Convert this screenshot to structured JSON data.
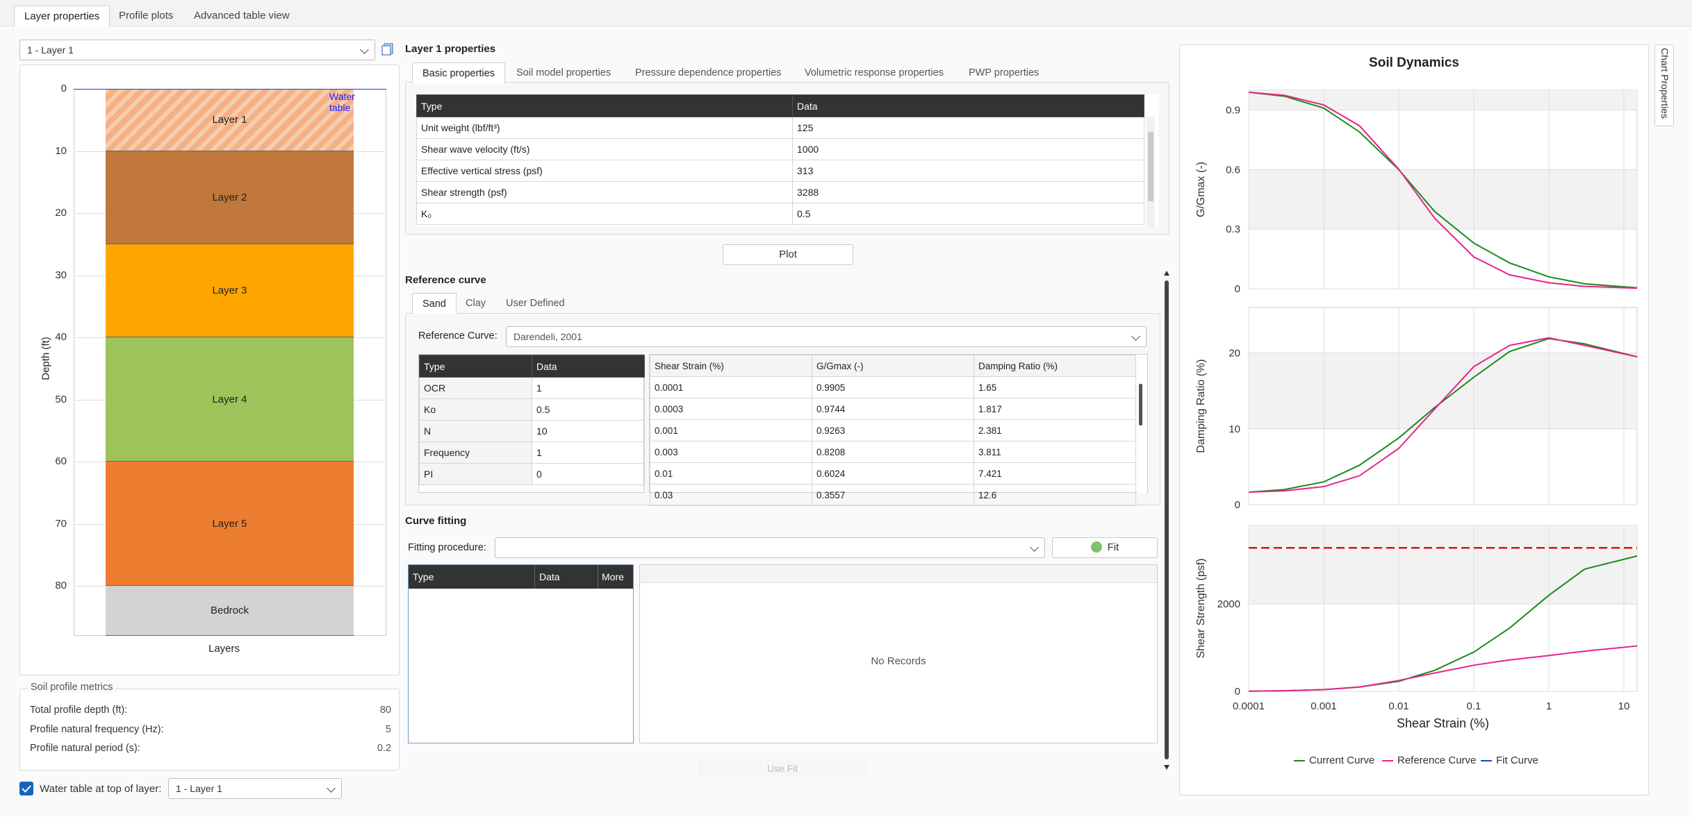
{
  "tabs": [
    "Layer properties",
    "Profile plots",
    "Advanced table view"
  ],
  "layer_select": "1 - Layer 1",
  "profile": {
    "ylabel": "Depth (ft)",
    "xlabel": "Layers",
    "water_table_label": "Water table",
    "yticks": [
      "0",
      "10",
      "20",
      "30",
      "40",
      "50",
      "60",
      "70",
      "80"
    ],
    "layers": [
      {
        "name": "Layer 1",
        "top": 0,
        "bottom": 10,
        "color": "#f4b183"
      },
      {
        "name": "Layer 2",
        "top": 10,
        "bottom": 25,
        "color": "#c0773a"
      },
      {
        "name": "Layer 3",
        "top": 25,
        "bottom": 40,
        "color": "#ffa500"
      },
      {
        "name": "Layer 4",
        "top": 40,
        "bottom": 60,
        "color": "#9dc35a"
      },
      {
        "name": "Layer 5",
        "top": 60,
        "bottom": 80,
        "color": "#ed7d31"
      },
      {
        "name": "Bedrock",
        "top": 80,
        "bottom": 88,
        "color": "#d3d3d3"
      }
    ]
  },
  "metrics": {
    "title": "Soil profile metrics",
    "rows": [
      {
        "label": "Total profile depth (ft):",
        "value": "80"
      },
      {
        "label": "Profile natural frequency (Hz):",
        "value": "5"
      },
      {
        "label": "Profile natural period (s):",
        "value": "0.2"
      }
    ]
  },
  "water_table": {
    "label": "Water table at top of layer:",
    "value": "1 - Layer 1",
    "checked": true
  },
  "layer_props": {
    "title": "Layer 1 properties",
    "tabs": [
      "Basic properties",
      "Soil model properties",
      "Pressure dependence properties",
      "Volumetric response properties",
      "PWP properties"
    ],
    "headers": [
      "Type",
      "Data"
    ],
    "rows": [
      [
        "Unit weight (lbf/ft³)",
        "125"
      ],
      [
        "Shear wave velocity (ft/s)",
        "1000"
      ],
      [
        "Effective vertical stress (psf)",
        "313"
      ],
      [
        "Shear strength (psf)",
        "3288"
      ],
      [
        "K₀",
        "0.5"
      ]
    ],
    "plot_button": "Plot"
  },
  "reference_curve": {
    "title": "Reference curve",
    "tabs": [
      "Sand",
      "Clay",
      "User Defined"
    ],
    "curve_label": "Reference Curve:",
    "curve_value": "Darendeli, 2001",
    "param_headers": [
      "Type",
      "Data"
    ],
    "params": [
      [
        "OCR",
        "1"
      ],
      [
        "Ko",
        "0.5"
      ],
      [
        "N",
        "10"
      ],
      [
        "Frequency",
        "1"
      ],
      [
        "PI",
        "0"
      ]
    ],
    "curve_headers": [
      "Shear Strain (%)",
      "G/Gmax (-)",
      "Damping Ratio (%)"
    ],
    "curve_rows": [
      [
        "0.0001",
        "0.9905",
        "1.65"
      ],
      [
        "0.0003",
        "0.9744",
        "1.817"
      ],
      [
        "0.001",
        "0.9263",
        "2.381"
      ],
      [
        "0.003",
        "0.8208",
        "3.811"
      ],
      [
        "0.01",
        "0.6024",
        "7.421"
      ],
      [
        "0.03",
        "0.3557",
        "12.6"
      ]
    ]
  },
  "curve_fitting": {
    "title": "Curve fitting",
    "procedure_label": "Fitting procedure:",
    "procedure_value": "",
    "fit_button": "Fit",
    "headers": [
      "Type",
      "Data",
      "More"
    ],
    "no_records": "No Records",
    "use_fit": "Use Fit"
  },
  "chart_properties_label": "Chart Properties",
  "chart_data": {
    "type": "line",
    "title": "Soil Dynamics",
    "xlabel": "Shear Strain (%)",
    "xscale": "log",
    "xlim": [
      0.0001,
      15
    ],
    "xticks": [
      "0.0001",
      "0.001",
      "0.01",
      "0.1",
      "1",
      "10"
    ],
    "legend": [
      "Current Curve",
      "Reference Curve",
      "Fit Curve"
    ],
    "legend_placement": "bottom",
    "colors": {
      "current": "#1a8a1a",
      "reference": "#e8238c",
      "fit": "#1a3fd6",
      "strength": "#e01010"
    },
    "panels": [
      {
        "ylabel": "G/Gmax (-)",
        "ylim": [
          0,
          1.0
        ],
        "yticks": [
          "0",
          "0.3",
          "0.6",
          "0.9"
        ],
        "series": [
          {
            "name": "Current Curve",
            "x": [
              0.0001,
              0.0003,
              0.001,
              0.003,
              0.01,
              0.03,
              0.1,
              0.3,
              1,
              3,
              15
            ],
            "y": [
              0.99,
              0.97,
              0.91,
              0.79,
              0.6,
              0.39,
              0.23,
              0.13,
              0.06,
              0.025,
              0.005
            ]
          },
          {
            "name": "Reference Curve",
            "x": [
              0.0001,
              0.0003,
              0.001,
              0.003,
              0.01,
              0.03,
              0.1,
              0.3,
              1,
              3,
              15
            ],
            "y": [
              0.99,
              0.974,
              0.926,
              0.821,
              0.602,
              0.356,
              0.16,
              0.07,
              0.03,
              0.012,
              0.003
            ]
          }
        ]
      },
      {
        "ylabel": "Damping Ratio (%)",
        "ylim": [
          0,
          26
        ],
        "yticks": [
          "0",
          "10",
          "20"
        ],
        "series": [
          {
            "name": "Current Curve",
            "x": [
              0.0001,
              0.0003,
              0.001,
              0.003,
              0.01,
              0.03,
              0.1,
              0.3,
              1,
              3,
              15
            ],
            "y": [
              1.65,
              2.0,
              3.0,
              5.2,
              8.8,
              12.8,
              16.8,
              20.2,
              21.9,
              21.2,
              19.5
            ]
          },
          {
            "name": "Reference Curve",
            "x": [
              0.0001,
              0.0003,
              0.001,
              0.003,
              0.01,
              0.03,
              0.1,
              0.3,
              1,
              3,
              15
            ],
            "y": [
              1.65,
              1.82,
              2.38,
              3.81,
              7.42,
              12.6,
              18.2,
              21.0,
              22.0,
              21.0,
              19.5
            ]
          }
        ]
      },
      {
        "ylabel": "Shear Strength (psf)",
        "ylim": [
          0,
          3800
        ],
        "yticks": [
          "0",
          "2000"
        ],
        "reference_line": 3288,
        "series": [
          {
            "name": "Current Curve",
            "x": [
              0.0001,
              0.0003,
              0.001,
              0.003,
              0.01,
              0.03,
              0.1,
              0.3,
              1,
              3,
              15
            ],
            "y": [
              5,
              15,
              40,
              100,
              230,
              480,
              900,
              1450,
              2200,
              2800,
              3100
            ]
          },
          {
            "name": "Reference Curve",
            "x": [
              0.0001,
              0.0003,
              0.001,
              0.003,
              0.01,
              0.03,
              0.1,
              0.3,
              1,
              3,
              15
            ],
            "y": [
              5,
              15,
              40,
              100,
              250,
              420,
              600,
              720,
              820,
              920,
              1040
            ]
          }
        ]
      }
    ]
  }
}
